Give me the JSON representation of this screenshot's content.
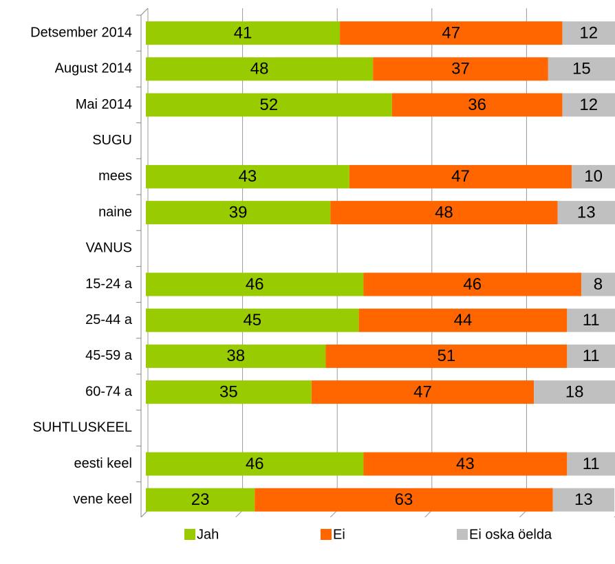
{
  "chart_data": {
    "type": "stacked-bar",
    "orientation": "horizontal",
    "categories": [
      "Detsember 2014",
      "August 2014",
      "Mai 2014",
      "SUGU",
      "mees",
      "naine",
      "VANUS",
      "15-24 a",
      "25-44 a",
      "45-59 a",
      "60-74 a",
      "SUHTLUSKEEL",
      "eesti keel",
      "vene keel"
    ],
    "series": [
      {
        "name": "Jah",
        "color": "#99cc00",
        "values": [
          41,
          48,
          52,
          null,
          43,
          39,
          null,
          46,
          45,
          38,
          35,
          null,
          46,
          23
        ]
      },
      {
        "name": "Ei",
        "color": "#ff6600",
        "values": [
          47,
          37,
          36,
          null,
          47,
          48,
          null,
          46,
          44,
          51,
          47,
          null,
          43,
          63
        ]
      },
      {
        "name": "Ei oska öelda",
        "color": "#c0c0c0",
        "values": [
          12,
          15,
          12,
          null,
          10,
          13,
          null,
          8,
          11,
          11,
          18,
          null,
          11,
          13
        ]
      }
    ],
    "xlim": [
      0,
      100
    ],
    "xticks": [
      0,
      20,
      40,
      60,
      80,
      100
    ],
    "grid": true,
    "legend": "bottom"
  }
}
